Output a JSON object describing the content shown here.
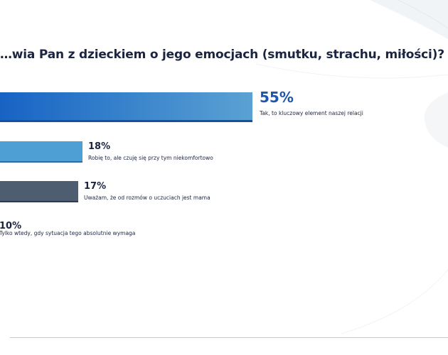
{
  "question": "…wia Pan z dzieckiem o jego emocjach (smutku, strachu, miłości)?",
  "colors": {
    "bar1_start": "#1763c4",
    "bar1_end": "#5aa2d3",
    "bar1_line": "#1a4f99",
    "bar2": "#4e9fd4",
    "bar2_line": "#2f6aa3",
    "bar3": "#4f5d71",
    "bar3_line": "#2f3b4c",
    "pct_highlight": "#1e57a8",
    "pct_normal": "#1b2440"
  },
  "chart_data": {
    "type": "bar",
    "orientation": "horizontal",
    "title": "…wia Pan z dzieckiem o jego emocjach (smutku, strachu, miłości)?",
    "categories": [
      "Tak, to kluczowy element naszej relacji",
      "Robię to, ale czuję się przy tym niekomfortowo",
      "Uważam, że od rozmów o uczuciach jest mama",
      "Tylko wtedy, gdy sytuacja tego absolutnie wymaga"
    ],
    "values": [
      55,
      18,
      17,
      10
    ],
    "value_labels": [
      "55%",
      "18%",
      "17%",
      "10%"
    ],
    "unit": "%",
    "xlim": [
      0,
      100
    ]
  }
}
